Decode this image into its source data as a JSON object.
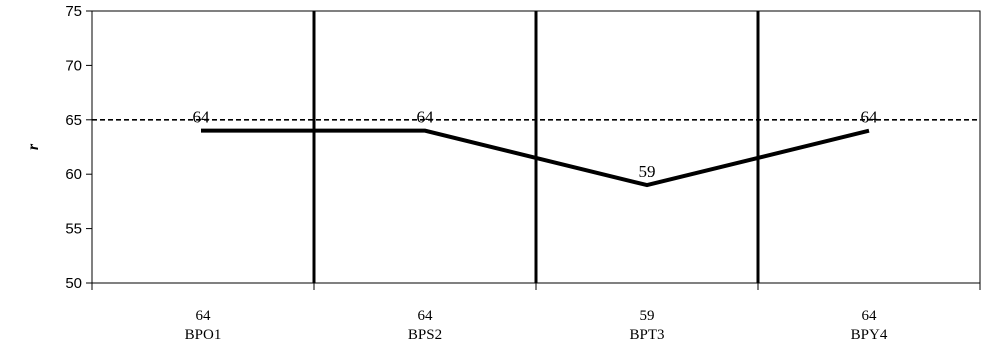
{
  "chart_data": {
    "type": "line",
    "categories": [
      "BPO1",
      "BPS2",
      "BPT3",
      "BPY4"
    ],
    "series": [
      {
        "values": [
          64,
          64,
          59,
          64
        ]
      }
    ],
    "category_value_labels": [
      "64",
      "64",
      "59",
      "64"
    ],
    "data_labels": [
      "64",
      "64",
      "59",
      "64"
    ],
    "ylabel": "r",
    "ylim": [
      50,
      75
    ],
    "yticks": [
      50,
      55,
      60,
      65,
      70,
      75
    ],
    "reference_line": {
      "value": 65,
      "style": "dashed"
    },
    "grid": "vertical separators between categories",
    "legend": "none",
    "line_color": "#000000"
  }
}
